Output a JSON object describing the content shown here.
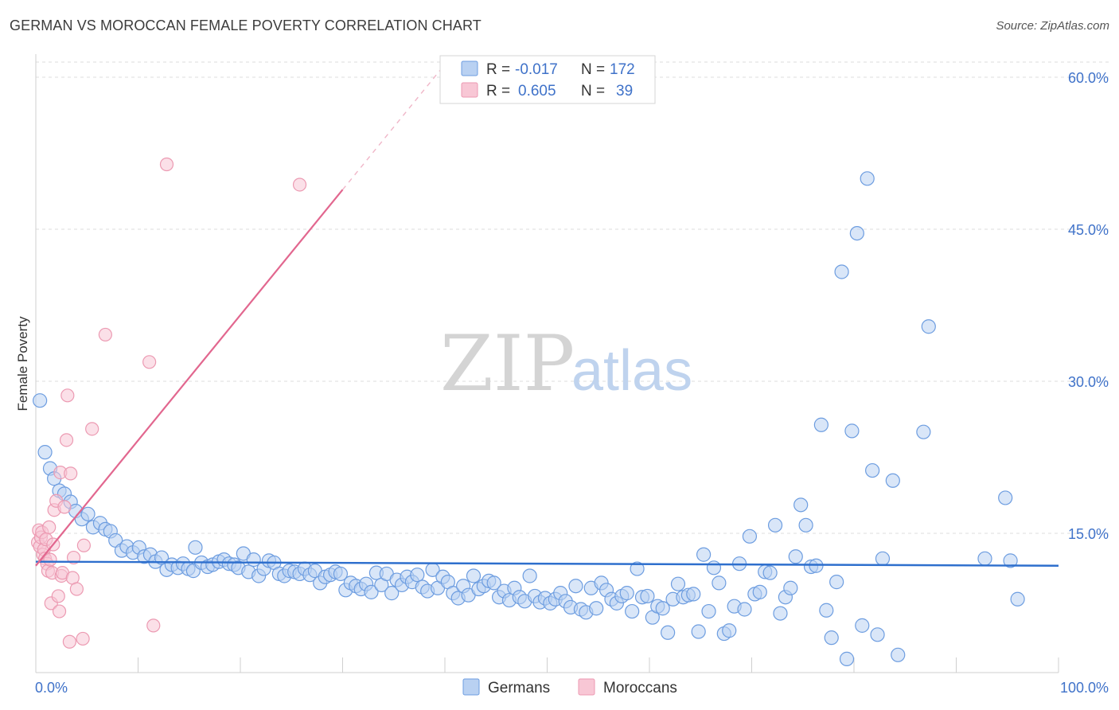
{
  "title": "GERMAN VS MOROCCAN FEMALE POVERTY CORRELATION CHART",
  "source": "Source: ZipAtlas.com",
  "watermark": {
    "zip": "ZIP",
    "atlas": "atlas"
  },
  "colors": {
    "german_fill": "#b9d1f2",
    "german_stroke": "#6d9de0",
    "german_line": "#2e6fcd",
    "moroccan_fill": "#f8c7d5",
    "moroccan_stroke": "#ec9ab2",
    "moroccan_line": "#e2678f",
    "tick_text": "#3f72c9",
    "grid": "#dedede"
  },
  "legend": {
    "rows": [
      {
        "r_label": "R =",
        "r_value": "-0.017",
        "n_label": "N =",
        "n_value": "172"
      },
      {
        "r_label": "R =",
        "r_value": "0.605",
        "n_label": "N =",
        "n_value": "39"
      }
    ]
  },
  "bottom_legend": [
    "Germans",
    "Moroccans"
  ],
  "chart_data": {
    "type": "scatter",
    "title": "GERMAN VS MOROCCAN FEMALE POVERTY CORRELATION CHART",
    "xlabel": "",
    "ylabel": "Female Poverty",
    "xlim": [
      0,
      100
    ],
    "ylim": [
      0,
      63
    ],
    "x_tick_labels": [
      "0.0%",
      "100.0%"
    ],
    "y_ticks": [
      15,
      30,
      45,
      60
    ],
    "y_tick_labels": [
      "15.0%",
      "30.0%",
      "45.0%",
      "60.0%"
    ],
    "grid": true,
    "legend_position": "top-center",
    "series": [
      {
        "name": "Germans",
        "r": -0.017,
        "n": 172,
        "trend": {
          "x": [
            0,
            100
          ],
          "y": [
            12.2,
            11.8
          ]
        },
        "points": [
          [
            0.4,
            28.1
          ],
          [
            0.9,
            23.0
          ],
          [
            1.4,
            21.4
          ],
          [
            1.8,
            20.4
          ],
          [
            2.3,
            19.2
          ],
          [
            2.8,
            18.9
          ],
          [
            3.4,
            18.1
          ],
          [
            3.9,
            17.2
          ],
          [
            4.5,
            16.4
          ],
          [
            5.1,
            16.9
          ],
          [
            5.6,
            15.6
          ],
          [
            6.3,
            16.0
          ],
          [
            6.8,
            15.4
          ],
          [
            7.3,
            15.2
          ],
          [
            7.8,
            14.3
          ],
          [
            8.4,
            13.3
          ],
          [
            8.9,
            13.7
          ],
          [
            9.5,
            13.1
          ],
          [
            10.1,
            13.6
          ],
          [
            10.6,
            12.7
          ],
          [
            11.2,
            12.9
          ],
          [
            11.7,
            12.2
          ],
          [
            12.3,
            12.6
          ],
          [
            12.8,
            11.4
          ],
          [
            13.3,
            11.9
          ],
          [
            13.9,
            11.6
          ],
          [
            14.4,
            12.0
          ],
          [
            14.9,
            11.5
          ],
          [
            15.4,
            11.3
          ],
          [
            15.6,
            13.6
          ],
          [
            16.2,
            12.1
          ],
          [
            16.8,
            11.7
          ],
          [
            17.3,
            11.9
          ],
          [
            17.9,
            12.2
          ],
          [
            18.4,
            12.4
          ],
          [
            18.9,
            12.0
          ],
          [
            19.4,
            11.9
          ],
          [
            19.8,
            11.6
          ],
          [
            20.3,
            13.0
          ],
          [
            20.8,
            11.2
          ],
          [
            21.3,
            12.4
          ],
          [
            21.8,
            10.8
          ],
          [
            22.3,
            11.5
          ],
          [
            22.8,
            12.3
          ],
          [
            23.3,
            12.1
          ],
          [
            23.8,
            11.0
          ],
          [
            24.3,
            10.8
          ],
          [
            24.8,
            11.3
          ],
          [
            25.3,
            11.2
          ],
          [
            25.8,
            11.0
          ],
          [
            26.3,
            11.5
          ],
          [
            26.8,
            10.9
          ],
          [
            27.3,
            11.3
          ],
          [
            27.8,
            10.1
          ],
          [
            28.3,
            10.7
          ],
          [
            28.8,
            10.9
          ],
          [
            29.3,
            11.2
          ],
          [
            29.8,
            11.0
          ],
          [
            30.3,
            9.4
          ],
          [
            30.8,
            10.1
          ],
          [
            31.3,
            9.8
          ],
          [
            31.8,
            9.5
          ],
          [
            32.3,
            10.0
          ],
          [
            32.8,
            9.2
          ],
          [
            33.3,
            11.1
          ],
          [
            33.8,
            9.9
          ],
          [
            34.3,
            11.0
          ],
          [
            34.8,
            9.1
          ],
          [
            35.3,
            10.4
          ],
          [
            35.8,
            9.9
          ],
          [
            36.3,
            10.7
          ],
          [
            36.8,
            10.2
          ],
          [
            37.3,
            10.9
          ],
          [
            37.8,
            9.7
          ],
          [
            38.3,
            9.3
          ],
          [
            38.8,
            11.4
          ],
          [
            39.3,
            9.6
          ],
          [
            39.8,
            10.7
          ],
          [
            40.3,
            10.2
          ],
          [
            40.8,
            9.1
          ],
          [
            41.3,
            8.6
          ],
          [
            41.8,
            9.8
          ],
          [
            42.3,
            8.9
          ],
          [
            42.8,
            10.8
          ],
          [
            43.3,
            9.5
          ],
          [
            43.8,
            9.8
          ],
          [
            44.3,
            10.3
          ],
          [
            44.8,
            10.1
          ],
          [
            45.3,
            8.7
          ],
          [
            45.8,
            9.3
          ],
          [
            46.3,
            8.4
          ],
          [
            46.8,
            9.6
          ],
          [
            47.3,
            8.7
          ],
          [
            47.8,
            8.3
          ],
          [
            48.3,
            10.8
          ],
          [
            48.8,
            8.8
          ],
          [
            49.3,
            8.2
          ],
          [
            49.8,
            8.6
          ],
          [
            50.3,
            8.1
          ],
          [
            50.8,
            8.5
          ],
          [
            51.3,
            9.1
          ],
          [
            51.8,
            8.3
          ],
          [
            52.3,
            7.7
          ],
          [
            52.8,
            9.8
          ],
          [
            53.3,
            7.5
          ],
          [
            53.8,
            7.2
          ],
          [
            54.3,
            9.6
          ],
          [
            54.8,
            7.6
          ],
          [
            55.3,
            10.1
          ],
          [
            55.8,
            9.4
          ],
          [
            56.3,
            8.5
          ],
          [
            56.8,
            8.1
          ],
          [
            57.3,
            8.8
          ],
          [
            57.8,
            9.1
          ],
          [
            58.3,
            7.3
          ],
          [
            58.8,
            11.5
          ],
          [
            59.3,
            8.7
          ],
          [
            59.8,
            8.8
          ],
          [
            60.3,
            6.7
          ],
          [
            60.8,
            7.8
          ],
          [
            61.3,
            7.6
          ],
          [
            61.8,
            5.2
          ],
          [
            62.3,
            8.5
          ],
          [
            62.8,
            10.0
          ],
          [
            63.3,
            8.7
          ],
          [
            63.8,
            8.9
          ],
          [
            64.3,
            9.0
          ],
          [
            64.8,
            5.3
          ],
          [
            65.3,
            12.9
          ],
          [
            65.8,
            7.3
          ],
          [
            66.3,
            11.6
          ],
          [
            66.8,
            10.1
          ],
          [
            67.3,
            5.1
          ],
          [
            67.8,
            5.4
          ],
          [
            68.3,
            7.8
          ],
          [
            68.8,
            12.0
          ],
          [
            69.3,
            7.5
          ],
          [
            69.8,
            14.7
          ],
          [
            70.3,
            9.0
          ],
          [
            70.8,
            9.2
          ],
          [
            71.3,
            11.2
          ],
          [
            71.8,
            11.1
          ],
          [
            72.3,
            15.8
          ],
          [
            72.8,
            7.1
          ],
          [
            73.3,
            8.7
          ],
          [
            73.8,
            9.6
          ],
          [
            74.3,
            12.7
          ],
          [
            74.8,
            17.8
          ],
          [
            75.3,
            15.8
          ],
          [
            75.8,
            11.7
          ],
          [
            76.3,
            11.8
          ],
          [
            76.8,
            25.7
          ],
          [
            77.3,
            7.4
          ],
          [
            77.8,
            4.7
          ],
          [
            78.3,
            10.2
          ],
          [
            78.8,
            40.8
          ],
          [
            79.3,
            2.6
          ],
          [
            79.8,
            25.1
          ],
          [
            80.3,
            44.6
          ],
          [
            80.8,
            5.9
          ],
          [
            81.3,
            50.0
          ],
          [
            81.8,
            21.2
          ],
          [
            82.3,
            5.0
          ],
          [
            82.8,
            12.5
          ],
          [
            83.8,
            20.2
          ],
          [
            84.3,
            3.0
          ],
          [
            86.8,
            25.0
          ],
          [
            87.3,
            35.4
          ],
          [
            92.8,
            12.5
          ],
          [
            94.8,
            18.5
          ],
          [
            95.3,
            12.3
          ],
          [
            96.0,
            8.5
          ]
        ]
      },
      {
        "name": "Moroccans",
        "r": 0.605,
        "n": 39,
        "trend": {
          "x": [
            0,
            30
          ],
          "y": [
            11.8,
            48.9
          ]
        },
        "points": [
          [
            0.2,
            14.1
          ],
          [
            0.3,
            15.3
          ],
          [
            0.4,
            13.7
          ],
          [
            0.5,
            14.6
          ],
          [
            0.6,
            15.1
          ],
          [
            0.7,
            12.9
          ],
          [
            0.8,
            13.4
          ],
          [
            0.9,
            12.5
          ],
          [
            1.0,
            14.4
          ],
          [
            1.1,
            12.0
          ],
          [
            1.2,
            11.3
          ],
          [
            1.3,
            15.6
          ],
          [
            1.4,
            12.4
          ],
          [
            1.5,
            8.1
          ],
          [
            1.6,
            11.1
          ],
          [
            1.7,
            13.9
          ],
          [
            1.8,
            17.3
          ],
          [
            2.0,
            18.2
          ],
          [
            2.2,
            8.8
          ],
          [
            2.3,
            7.3
          ],
          [
            2.4,
            21.0
          ],
          [
            2.5,
            10.8
          ],
          [
            2.6,
            11.1
          ],
          [
            2.8,
            17.6
          ],
          [
            3.0,
            24.2
          ],
          [
            3.1,
            28.6
          ],
          [
            3.3,
            4.3
          ],
          [
            3.4,
            20.9
          ],
          [
            3.6,
            10.6
          ],
          [
            3.7,
            12.6
          ],
          [
            4.0,
            9.5
          ],
          [
            4.6,
            4.6
          ],
          [
            4.7,
            13.8
          ],
          [
            5.5,
            25.3
          ],
          [
            6.8,
            34.6
          ],
          [
            11.1,
            31.9
          ],
          [
            11.5,
            5.9
          ],
          [
            12.8,
            51.4
          ],
          [
            25.8,
            49.4
          ]
        ]
      }
    ]
  }
}
